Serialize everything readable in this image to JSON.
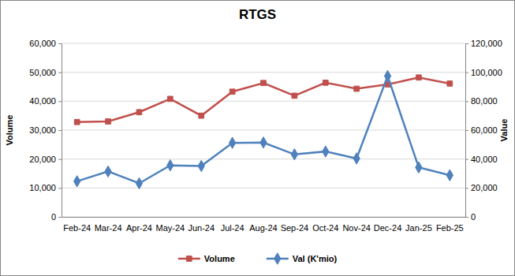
{
  "chart_data": {
    "type": "line",
    "title": "RTGS",
    "categories": [
      "Feb-24",
      "Mar-24",
      "Apr-24",
      "May-24",
      "Jun-24",
      "Jul-24",
      "Aug-24",
      "Sep-24",
      "Oct-24",
      "Nov-24",
      "Dec-24",
      "Jan-25",
      "Feb-25"
    ],
    "y_label": "Volume",
    "y2_label": "Value",
    "ylim": [
      0,
      60000
    ],
    "yticks": [
      0,
      {
        "value": 10000,
        "label": "10,000"
      },
      {
        "value": 20000,
        "label": "20,000"
      },
      {
        "value": 30000,
        "label": "30,000"
      },
      {
        "value": 40000,
        "label": "40,000"
      },
      {
        "value": 50000,
        "label": "50,000"
      },
      {
        "value": 60000,
        "label": "60,000"
      }
    ],
    "y2lim": [
      0,
      120000
    ],
    "y2ticks": [
      0,
      {
        "value": 20000,
        "label": "20,000"
      },
      {
        "value": 40000,
        "label": "40,000"
      },
      {
        "value": 60000,
        "label": "60,000"
      },
      {
        "value": 80000,
        "label": "80,000"
      },
      {
        "value": 100000,
        "label": "100,000"
      },
      {
        "value": 120000,
        "label": "120,000"
      }
    ],
    "grid": true,
    "legend": "bottom",
    "series": [
      {
        "name": "Volume",
        "color": "#c0504d",
        "marker": "square",
        "values": [
          32800,
          33000,
          36200,
          40800,
          35000,
          43300,
          46300,
          41900,
          46400,
          44300,
          45800,
          48200,
          46100
        ]
      },
      {
        "name": "Val (K'mio)",
        "color": "#4f81bd",
        "marker": "diamond",
        "axis": "y2",
        "values": [
          24600,
          31400,
          23200,
          35600,
          35200,
          51200,
          51400,
          43200,
          45200,
          40400,
          97400,
          34200,
          28800
        ]
      }
    ]
  }
}
